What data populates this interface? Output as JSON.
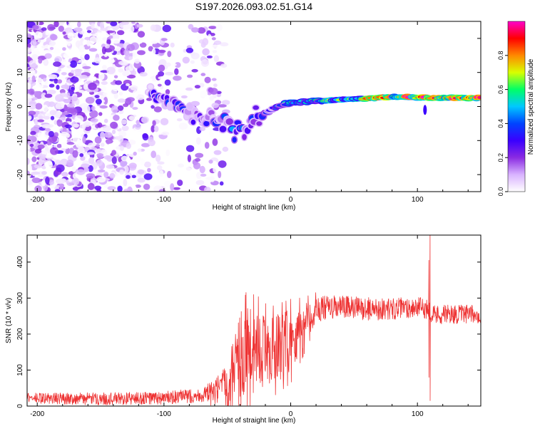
{
  "title": "S197.2026.093.02.51.G14",
  "chart_data": [
    {
      "type": "heatmap",
      "xlabel": "Height of straight line (km)",
      "ylabel": "Frequency (Hz)",
      "xlim": [
        -208,
        150
      ],
      "ylim": [
        -25,
        25
      ],
      "xticks": [
        -200,
        -100,
        0,
        100
      ],
      "yticks": [
        -20,
        -10,
        0,
        10,
        20
      ],
      "colorbar": {
        "label": "Normalized spectral amplitude",
        "range": [
          0,
          1
        ],
        "ticks": [
          "0.0",
          "0.2",
          "0.4",
          "0.6",
          "0.8"
        ],
        "stops": [
          "#ffffff",
          "#d9b3ff",
          "#8a2be2",
          "#3a00ff",
          "#0044ff",
          "#00c8ff",
          "#00ff66",
          "#d9ff00",
          "#ff8800",
          "#ff0000",
          "#ff00cc"
        ]
      },
      "ridge": [
        {
          "x": -110,
          "freq": 3.5,
          "amp": 0.22
        },
        {
          "x": -100,
          "freq": 2.0,
          "amp": 0.25
        },
        {
          "x": -90,
          "freq": 0.0,
          "amp": 0.22
        },
        {
          "x": -80,
          "freq": -2.0,
          "amp": 0.22
        },
        {
          "x": -70,
          "freq": -3.0,
          "amp": 0.18
        },
        {
          "x": -55,
          "freq": -4.0,
          "amp": 0.2
        },
        {
          "x": -48,
          "freq": -5.5,
          "amp": 0.3
        },
        {
          "x": -40,
          "freq": -7.0,
          "amp": 0.35
        },
        {
          "x": -35,
          "freq": -6.5,
          "amp": 0.32
        },
        {
          "x": -30,
          "freq": -4.0,
          "amp": 0.3
        },
        {
          "x": -20,
          "freq": -2.0,
          "amp": 0.3
        },
        {
          "x": -10,
          "freq": 0.0,
          "amp": 0.4
        },
        {
          "x": 0,
          "freq": 1.0,
          "amp": 0.45
        },
        {
          "x": 20,
          "freq": 1.6,
          "amp": 0.55
        },
        {
          "x": 50,
          "freq": 2.2,
          "amp": 0.65
        },
        {
          "x": 80,
          "freq": 2.8,
          "amp": 0.75
        },
        {
          "x": 110,
          "freq": 2.5,
          "amp": 0.8
        },
        {
          "x": 150,
          "freq": 2.5,
          "amp": 0.8
        }
      ]
    },
    {
      "type": "line",
      "xlabel": "Height of straight line (km)",
      "ylabel": "SNR (10 * v/v)",
      "xlim": [
        -208,
        150
      ],
      "ylim": [
        0,
        475
      ],
      "xticks": [
        -200,
        -100,
        0,
        100
      ],
      "yticks": [
        0,
        100,
        200,
        300,
        400
      ],
      "color": "#ee3333",
      "trend": {
        "x": [
          -208,
          -150,
          -100,
          -70,
          -60,
          -45,
          -35,
          -25,
          -15,
          0,
          10,
          20,
          40,
          60,
          80,
          100,
          108,
          112,
          130,
          150
        ],
        "y": [
          22,
          20,
          22,
          30,
          35,
          70,
          150,
          160,
          150,
          180,
          220,
          270,
          275,
          270,
          270,
          275,
          270,
          255,
          255,
          255
        ]
      },
      "noise": {
        "x": [
          -208,
          -70,
          -50,
          -35,
          -20,
          0,
          20,
          150
        ],
        "amp": [
          15,
          20,
          60,
          130,
          100,
          90,
          35,
          25
        ]
      },
      "events": [
        {
          "x": 110,
          "max": 480,
          "min": 15
        },
        {
          "x": 109,
          "max": 405,
          "min": 80
        }
      ]
    }
  ]
}
